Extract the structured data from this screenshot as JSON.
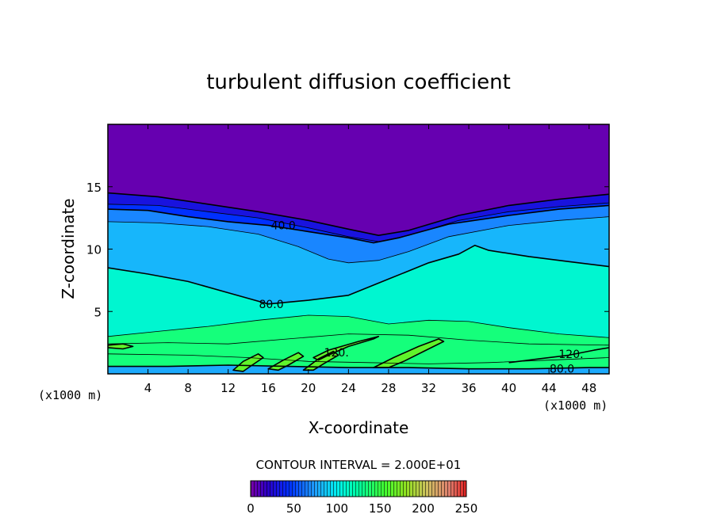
{
  "chart_data": {
    "type": "heatmap",
    "title": "turbulent diffusion coefficient",
    "xlabel": "X-coordinate",
    "ylabel": "Z-coordinate",
    "x_unit_label": "(x1000 m)",
    "x_unit_label_right": "(x1000 m)",
    "xlim": [
      0,
      50
    ],
    "ylim": [
      0,
      20
    ],
    "x_ticks": [
      4,
      8,
      12,
      16,
      20,
      24,
      28,
      32,
      36,
      40,
      44,
      48
    ],
    "y_ticks": [
      5,
      10,
      15
    ],
    "contour_interval_text": "CONTOUR INTERVAL = 2.000E+01",
    "contour_interval": 20,
    "colorbar": {
      "range": [
        0,
        250
      ],
      "ticks": [
        0,
        50,
        100,
        150,
        200,
        250
      ]
    },
    "contour_labels": [
      {
        "text": "40.0",
        "x": 17.5,
        "z": 11.9
      },
      {
        "text": "80.0",
        "x": 16.3,
        "z": 5.6
      },
      {
        "text": "120.",
        "x": 22.8,
        "z": 1.7
      },
      {
        "text": "120.",
        "x": 46.2,
        "z": 1.6
      },
      {
        "text": "80.0",
        "x": 45.3,
        "z": 0.4
      }
    ],
    "contours": [
      {
        "level": 0,
        "points": [
          [
            0,
            14.5
          ],
          [
            5,
            14.2
          ],
          [
            10,
            13.6
          ],
          [
            15,
            13.0
          ],
          [
            20,
            12.3
          ],
          [
            24,
            11.6
          ],
          [
            27,
            11.1
          ],
          [
            30,
            11.5
          ],
          [
            35,
            12.7
          ],
          [
            40,
            13.5
          ],
          [
            45,
            14.0
          ],
          [
            50,
            14.4
          ]
        ]
      },
      {
        "level": 20,
        "points": [
          [
            0,
            13.6
          ],
          [
            5,
            13.5
          ],
          [
            10,
            13.0
          ],
          [
            15,
            12.5
          ],
          [
            20,
            11.7
          ],
          [
            24,
            11.0
          ],
          [
            27,
            10.6
          ],
          [
            30,
            11.1
          ],
          [
            35,
            12.3
          ],
          [
            40,
            13.0
          ],
          [
            45,
            13.4
          ],
          [
            50,
            13.7
          ]
        ]
      },
      {
        "level": 40,
        "points": [
          [
            0,
            13.2
          ],
          [
            4,
            13.1
          ],
          [
            8,
            12.6
          ],
          [
            12,
            12.2
          ],
          [
            16,
            11.9
          ],
          [
            20,
            11.4
          ],
          [
            24,
            10.9
          ],
          [
            26.5,
            10.5
          ],
          [
            29,
            10.9
          ],
          [
            34,
            12.0
          ],
          [
            40,
            12.7
          ],
          [
            45,
            13.2
          ],
          [
            50,
            13.5
          ]
        ]
      },
      {
        "level": 60,
        "points": [
          [
            0,
            12.2
          ],
          [
            5,
            12.1
          ],
          [
            10,
            11.8
          ],
          [
            15,
            11.2
          ],
          [
            19,
            10.2
          ],
          [
            22,
            9.2
          ],
          [
            24,
            8.9
          ],
          [
            27,
            9.1
          ],
          [
            30,
            9.8
          ],
          [
            34,
            11.0
          ],
          [
            40,
            11.9
          ],
          [
            45,
            12.3
          ],
          [
            50,
            12.6
          ]
        ]
      },
      {
        "level": 80,
        "points": [
          [
            0,
            8.5
          ],
          [
            4,
            8.0
          ],
          [
            8,
            7.4
          ],
          [
            12,
            6.5
          ],
          [
            16,
            5.6
          ],
          [
            20,
            5.9
          ],
          [
            24,
            6.3
          ],
          [
            28,
            7.6
          ],
          [
            32,
            8.9
          ],
          [
            35,
            9.6
          ],
          [
            36.6,
            10.3
          ],
          [
            38,
            9.9
          ],
          [
            42,
            9.4
          ],
          [
            46,
            9.0
          ],
          [
            50,
            8.6
          ]
        ]
      },
      {
        "level": 100,
        "points": [
          [
            0,
            3.0
          ],
          [
            5,
            3.4
          ],
          [
            10,
            3.8
          ],
          [
            15,
            4.3
          ],
          [
            20,
            4.7
          ],
          [
            24,
            4.6
          ],
          [
            28,
            4.0
          ],
          [
            32,
            4.3
          ],
          [
            36,
            4.2
          ],
          [
            40,
            3.7
          ],
          [
            45,
            3.2
          ],
          [
            50,
            2.9
          ]
        ]
      },
      {
        "level": 100,
        "points": [
          [
            0,
            2.4
          ],
          [
            6,
            2.5
          ],
          [
            12,
            2.4
          ],
          [
            18,
            2.8
          ],
          [
            24,
            3.2
          ],
          [
            30,
            3.1
          ],
          [
            36,
            2.7
          ],
          [
            42,
            2.4
          ],
          [
            50,
            2.3
          ]
        ]
      },
      {
        "level": 120,
        "points": [
          [
            0,
            2.3
          ],
          [
            1.5,
            2.4
          ],
          [
            2.5,
            2.2
          ],
          [
            1.5,
            2.0
          ],
          [
            0,
            2.1
          ]
        ]
      },
      {
        "level": 120,
        "points": [
          [
            20.5,
            1.3
          ],
          [
            22,
            1.9
          ],
          [
            25,
            2.6
          ],
          [
            27,
            3.0
          ],
          [
            26.5,
            2.8
          ],
          [
            24,
            2.2
          ],
          [
            22,
            1.5
          ],
          [
            21,
            1.1
          ]
        ]
      },
      {
        "level": 120,
        "points": [
          [
            26.5,
            0.5
          ],
          [
            28.5,
            1.3
          ],
          [
            31,
            2.2
          ],
          [
            33,
            2.8
          ],
          [
            33.5,
            2.6
          ],
          [
            31.5,
            1.8
          ],
          [
            29.5,
            1.0
          ],
          [
            28,
            0.5
          ]
        ]
      },
      {
        "level": 120,
        "points": [
          [
            40,
            0.9
          ],
          [
            43,
            1.2
          ],
          [
            46,
            1.5
          ],
          [
            48.5,
            1.9
          ],
          [
            50,
            2.1
          ]
        ]
      },
      {
        "level": 100,
        "points": [
          [
            0,
            1.6
          ],
          [
            8,
            1.5
          ],
          [
            14,
            1.3
          ],
          [
            20,
            1.0
          ],
          [
            26,
            0.9
          ],
          [
            32,
            0.8
          ],
          [
            38,
            0.9
          ],
          [
            44,
            1.1
          ],
          [
            50,
            1.3
          ]
        ]
      },
      {
        "level": 80,
        "points": [
          [
            0,
            0.6
          ],
          [
            6,
            0.6
          ],
          [
            12,
            0.7
          ],
          [
            18,
            0.6
          ],
          [
            24,
            0.5
          ],
          [
            30,
            0.5
          ],
          [
            36,
            0.4
          ],
          [
            42,
            0.4
          ],
          [
            48,
            0.5
          ],
          [
            50,
            0.5
          ]
        ]
      },
      {
        "level": 120,
        "points": [
          [
            12.5,
            0.3
          ],
          [
            13.5,
            1.0
          ],
          [
            15,
            1.6
          ],
          [
            15.5,
            1.3
          ],
          [
            14.2,
            0.6
          ],
          [
            13.5,
            0.2
          ]
        ]
      },
      {
        "level": 120,
        "points": [
          [
            16,
            0.4
          ],
          [
            17.5,
            1.1
          ],
          [
            19,
            1.7
          ],
          [
            19.5,
            1.4
          ],
          [
            18,
            0.7
          ],
          [
            17,
            0.3
          ]
        ]
      },
      {
        "level": 120,
        "points": [
          [
            19.5,
            0.3
          ],
          [
            21,
            1.2
          ],
          [
            22.5,
            1.8
          ],
          [
            23,
            1.5
          ],
          [
            21.5,
            0.8
          ],
          [
            20.5,
            0.3
          ]
        ]
      }
    ]
  }
}
